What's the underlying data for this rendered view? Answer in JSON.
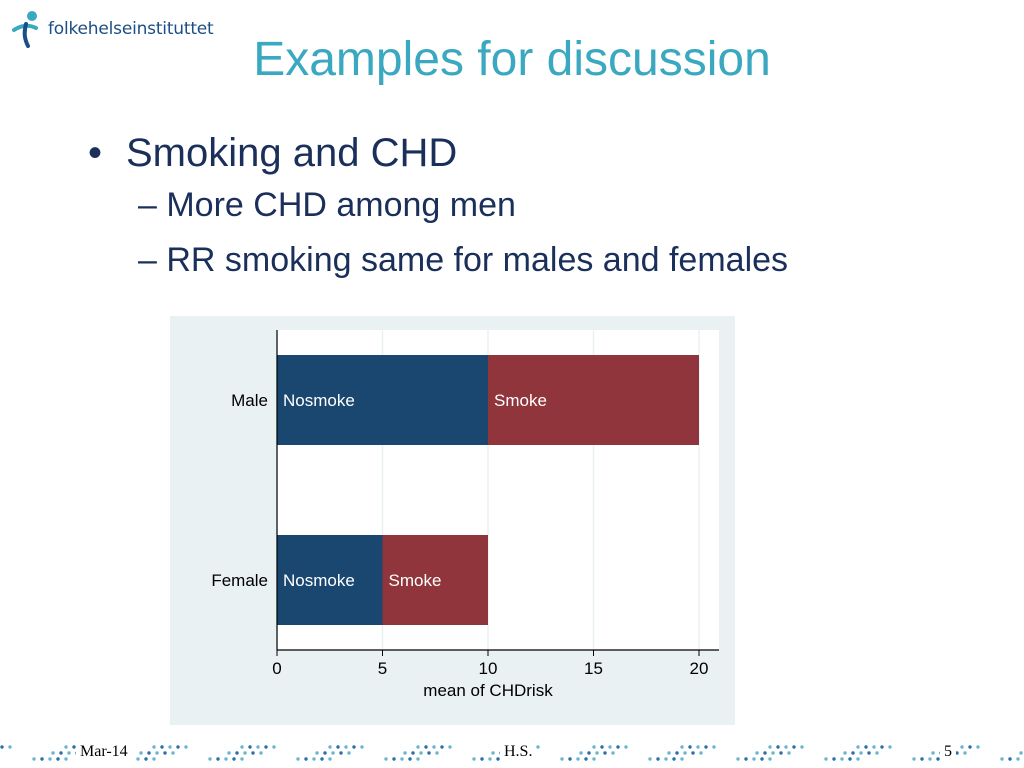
{
  "logo": {
    "text": "folkehelseinstituttet"
  },
  "slide": {
    "title": "Examples for discussion",
    "bullet": "Smoking and CHD",
    "subbullets": [
      "– More CHD among men",
      "– RR smoking same for males and females"
    ]
  },
  "chart_data": {
    "type": "bar",
    "orientation": "horizontal",
    "stacked": true,
    "categories": [
      "Male",
      "Female"
    ],
    "series": [
      {
        "name": "Nosmoke",
        "values": [
          10,
          5
        ],
        "color": "#1a476f"
      },
      {
        "name": "Smoke",
        "values": [
          10,
          5
        ],
        "color": "#90353b"
      }
    ],
    "xlabel": "mean of CHDrisk",
    "xlim": [
      0,
      20
    ],
    "xticks": [
      "0",
      "5",
      "10",
      "15",
      "20"
    ],
    "grid": true,
    "legend": "none"
  },
  "footer": {
    "date": "Mar-14",
    "author": "H.S.",
    "page": "5"
  },
  "colors": {
    "title": "#3aa8c0",
    "text": "#1a2f5a",
    "plot_bg": "#eaf1f3",
    "dots": "#2a6fa8"
  }
}
